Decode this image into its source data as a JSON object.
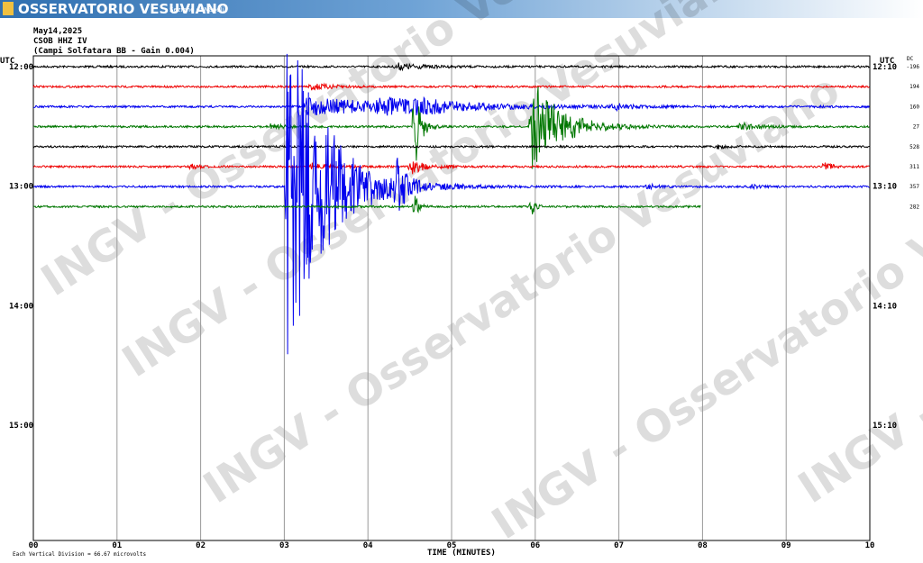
{
  "header": {
    "title": "OSSERVATORIO VESUVIANO",
    "subtitle": "Sezione di Napoli"
  },
  "info": {
    "date": "May14,2025",
    "station": "CSOB HHZ IV",
    "description": "(Campi Solfatara BB  - Gain 0.004)"
  },
  "axis": {
    "left_unit": "UTC",
    "right_unit": "UTC",
    "dc_label": "DC",
    "left_times": [
      "12:00",
      "13:00",
      "14:00",
      "15:00"
    ],
    "right_times": [
      "12:10",
      "13:10",
      "14:10",
      "15:10"
    ],
    "dc_values": [
      "-196",
      "194",
      "160",
      "27",
      "528",
      "311",
      "357",
      "282"
    ],
    "x_ticks": [
      "00",
      "01",
      "02",
      "03",
      "04",
      "05",
      "06",
      "07",
      "08",
      "09",
      "10"
    ],
    "x_label": "TIME (MINUTES)"
  },
  "footer": {
    "scale_note": "Each Vertical Division =   66.67 microvolts"
  },
  "watermark": "INGV - Osservatorio Vesuviano"
}
